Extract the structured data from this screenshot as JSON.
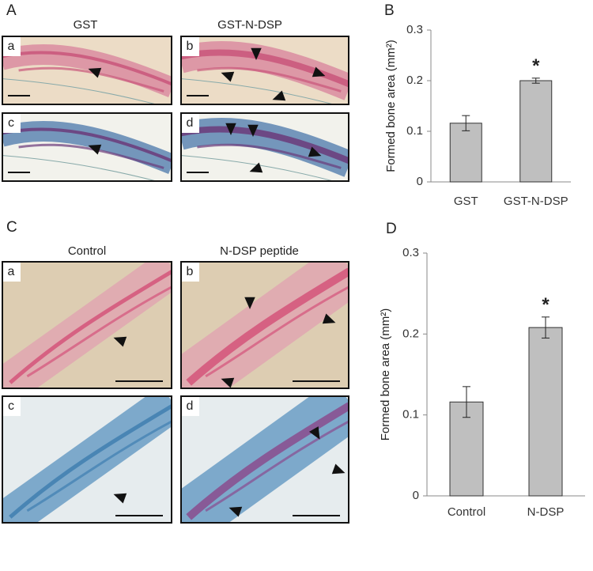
{
  "figure_panels": [
    {
      "label": "A",
      "columns": [
        "GST",
        "GST-N-DSP"
      ],
      "images": [
        "a",
        "b",
        "c",
        "d"
      ]
    },
    {
      "label": "C",
      "columns": [
        "Control",
        "N-DSP peptide"
      ],
      "images": [
        "a",
        "b",
        "c",
        "d"
      ]
    }
  ],
  "chart_data": [
    {
      "type": "bar",
      "panel_label": "B",
      "y_label": "Formed bone area (mm²)",
      "categories": [
        "GST",
        "GST-N-DSP"
      ],
      "values": [
        0.116,
        0.2
      ],
      "errors": [
        0.015,
        0.005
      ],
      "annotations": [
        {
          "category": "GST-N-DSP",
          "text": "*"
        }
      ],
      "color": "#bfbfbf",
      "ylim": [
        0,
        0.3
      ],
      "yticks": [
        0,
        0.1,
        0.2,
        0.3
      ]
    },
    {
      "type": "bar",
      "panel_label": "D",
      "y_label": "Formed bone area (mm²)",
      "categories": [
        "Control",
        "N-DSP"
      ],
      "values": [
        0.116,
        0.208
      ],
      "errors": [
        0.019,
        0.013
      ],
      "annotations": [
        {
          "category": "N-DSP",
          "text": "*"
        }
      ],
      "color": "#bfbfbf",
      "ylim": [
        0,
        0.3
      ],
      "yticks": [
        0,
        0.1,
        0.2,
        0.3
      ]
    }
  ]
}
